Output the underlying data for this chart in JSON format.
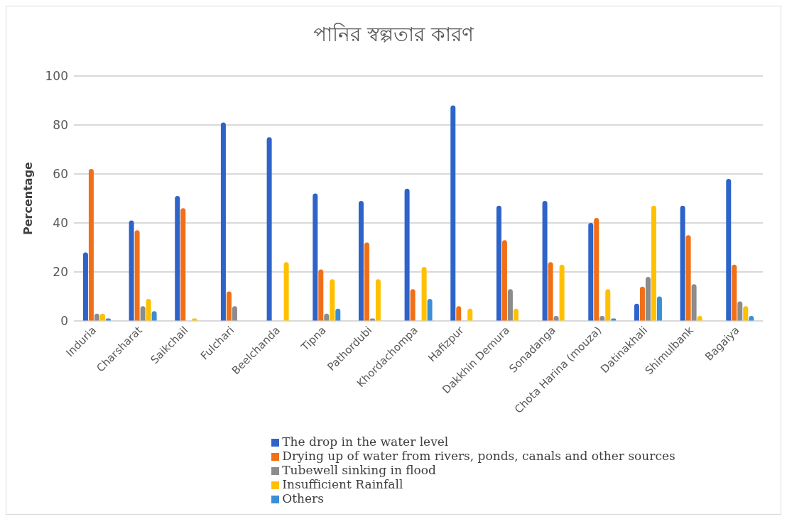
{
  "chart_data": {
    "type": "bar",
    "title": "পানির স্বল্পতার কারণ",
    "ylabel": "Percentage",
    "categories": [
      "Induria",
      "Charsharat",
      "Saikchail",
      "Fulchari",
      "Beelchanda",
      "Tipna",
      "Pathordubi",
      "Khordachompa",
      "Hafizpur",
      "Dakkhin Demura",
      "Sonadanga",
      "Chota Harina (mouza)",
      "Datinakhali",
      "Shimulbank",
      "Bagaiya"
    ],
    "series": [
      {
        "name": "The drop in the water level",
        "color": "#2e63c9",
        "values": [
          28,
          41,
          51,
          81,
          75,
          52,
          49,
          54,
          88,
          47,
          49,
          40,
          7,
          47,
          58
        ]
      },
      {
        "name": "Drying up of water from rivers, ponds, canals and other sources",
        "color": "#f07019",
        "values": [
          62,
          37,
          46,
          12,
          0,
          21,
          32,
          13,
          6,
          33,
          24,
          42,
          14,
          35,
          23
        ]
      },
      {
        "name": "Tubewell sinking in flood",
        "color": "#8c8c8c",
        "values": [
          3,
          6,
          0,
          6,
          0,
          3,
          1,
          0,
          0,
          13,
          2,
          2,
          18,
          15,
          8
        ]
      },
      {
        "name": "Insufficient Rainfall",
        "color": "#ffc000",
        "values": [
          3,
          9,
          1,
          0,
          24,
          17,
          17,
          22,
          5,
          5,
          23,
          13,
          47,
          2,
          6
        ]
      },
      {
        "name": "Others",
        "color": "#3a8fd6",
        "values": [
          1,
          4,
          0,
          0,
          0,
          5,
          0,
          9,
          0,
          0,
          0,
          1,
          10,
          0,
          2
        ]
      }
    ],
    "ylim": [
      0,
      100
    ],
    "yticks": [
      0,
      20,
      40,
      60,
      80,
      100
    ],
    "grid": "y",
    "legend": "bottom"
  }
}
